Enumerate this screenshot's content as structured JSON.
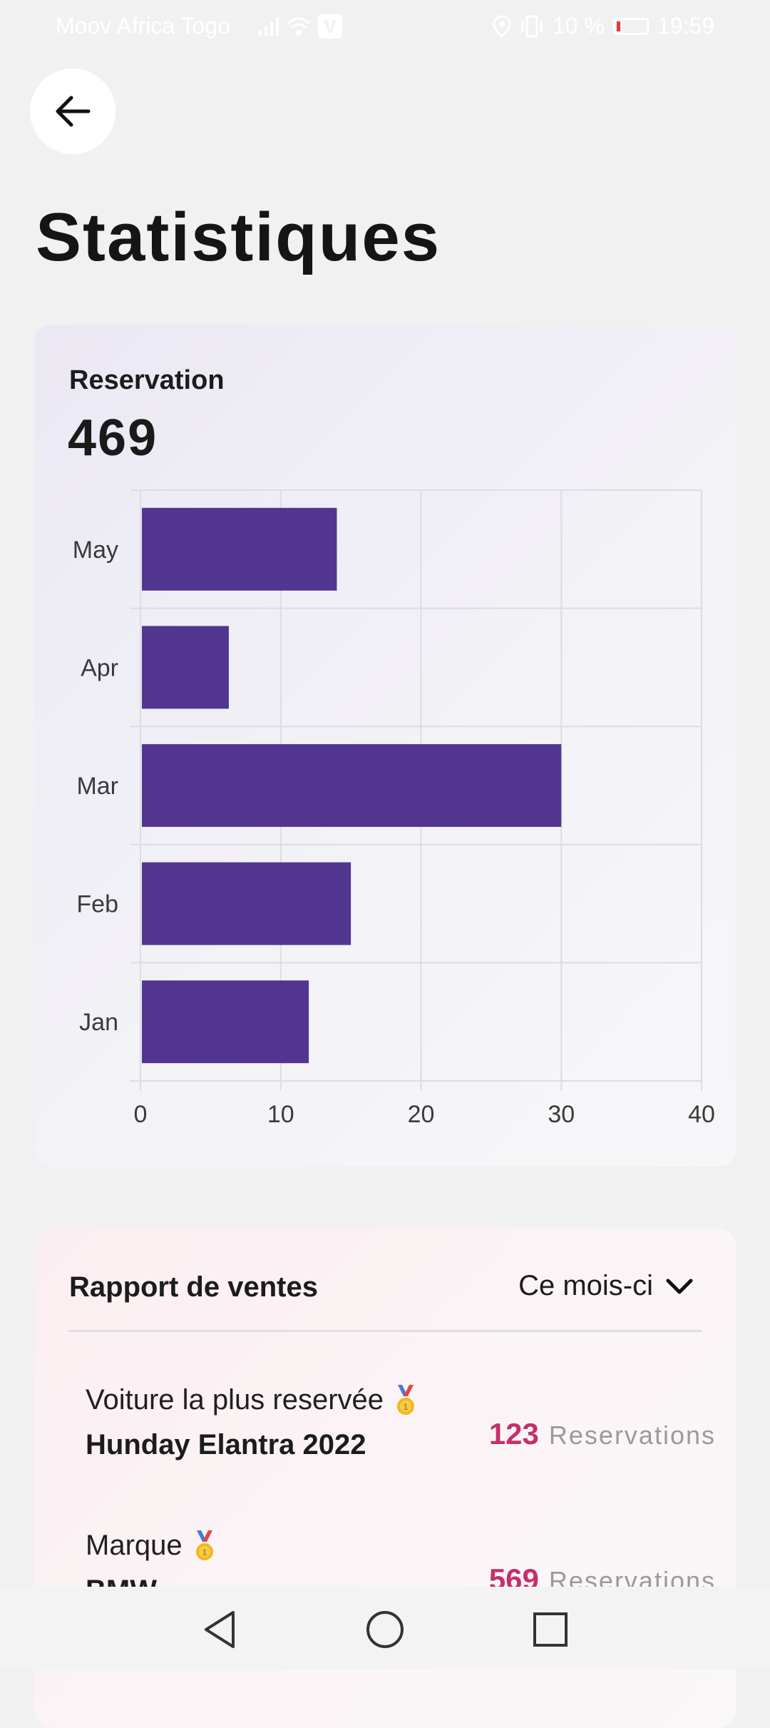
{
  "status_bar": {
    "carrier": "Moov Africa Togo",
    "battery": "10 %",
    "time": "19:59"
  },
  "page": {
    "title": "Statistiques"
  },
  "reservation": {
    "label": "Reservation",
    "total": "469"
  },
  "chart_data": {
    "type": "bar",
    "orientation": "horizontal",
    "categories": [
      "May",
      "Apr",
      "Mar",
      "Feb",
      "Jan"
    ],
    "values": [
      14,
      6.3,
      30,
      15,
      12
    ],
    "xlim": [
      0,
      40
    ],
    "xticks": [
      "0",
      "10",
      "20",
      "30",
      "40"
    ],
    "grid": true,
    "bar_color": "#523590"
  },
  "sales_report": {
    "title": "Rapport de ventes",
    "period": "Ce mois-ci",
    "rows": [
      {
        "kind": "Voiture la plus reservée",
        "name": "Hunday Elantra 2022",
        "count": "123",
        "unit": "Reservations"
      },
      {
        "kind": "Marque",
        "name": "BMW",
        "count": "569",
        "unit": "Reservations"
      }
    ]
  },
  "colors": {
    "accent": "#523590",
    "count": "#c62f6a"
  }
}
